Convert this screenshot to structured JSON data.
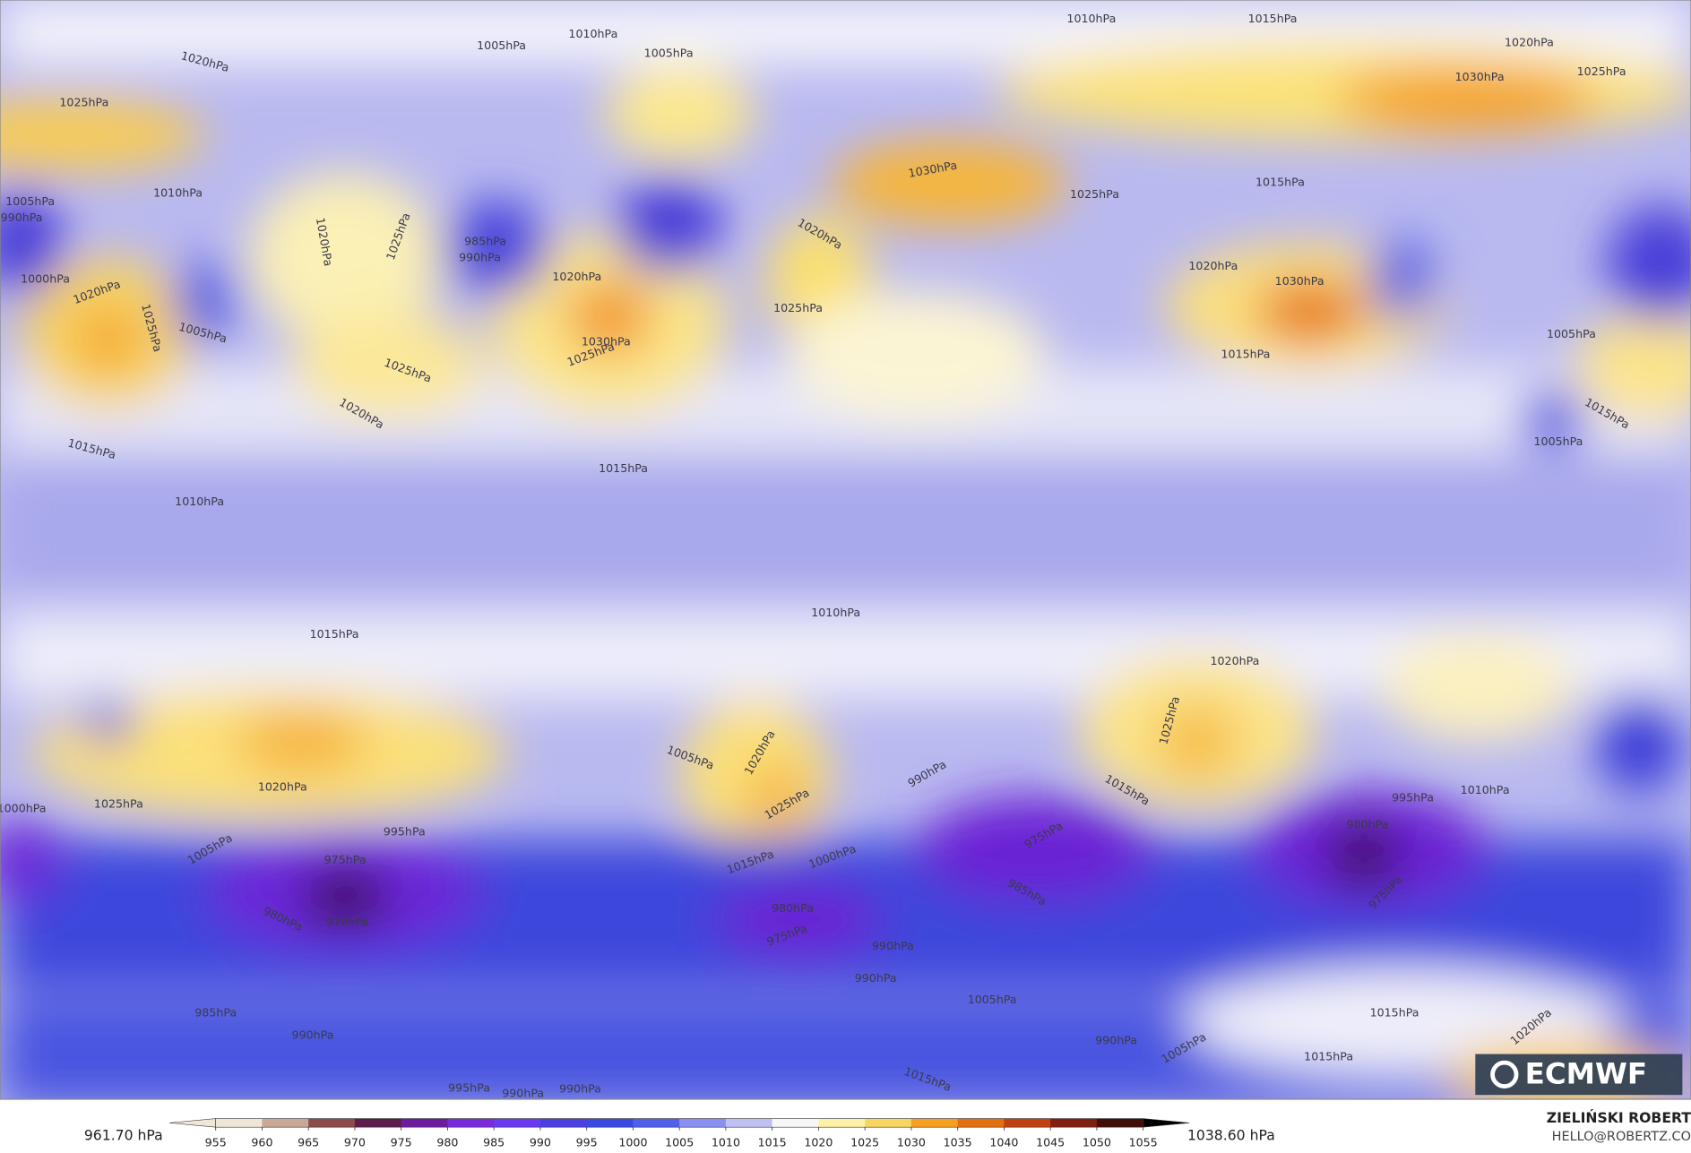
{
  "colorbar": {
    "ticks": [
      955,
      960,
      965,
      970,
      975,
      980,
      985,
      990,
      995,
      1000,
      1005,
      1010,
      1015,
      1020,
      1025,
      1030,
      1035,
      1040,
      1045,
      1050,
      1055
    ],
    "lim": [
      950,
      1060
    ],
    "min_label": "961.70 hPa",
    "max_label": "1038.60 hPa"
  },
  "logo": "ECMWF",
  "author": "ZIELIŃSKI ROBERT",
  "email": "HELLO@ROBERTZ.CO",
  "contour_labels": [
    "1010hPa",
    "1015hPa",
    "1020hPa",
    "1025hPa",
    "1030hPa",
    "1020hPa",
    "1025hPa",
    "1005hPa",
    "1010hPa",
    "1005hPa",
    "1010hPa",
    "1005hPa",
    "990hPa",
    "1000hPa",
    "1020hPa",
    "1025hPa",
    "1005hPa",
    "1020hPa",
    "1025hPa",
    "985hPa",
    "990hPa",
    "1030hPa",
    "1025hPa",
    "1020hPa",
    "1025hPa",
    "1020hPa",
    "1015hPa",
    "1015hPa",
    "1010hPa",
    "1030hPa",
    "1025hPa",
    "1015hPa",
    "1020hPa",
    "1025hPa",
    "1020hPa",
    "1030hPa",
    "1015hPa",
    "1005hPa",
    "1005hPa",
    "1015hPa",
    "1010hPa",
    "1015hPa",
    "1020hPa",
    "1025hPa",
    "1020hPa",
    "1025hPa",
    "1000hPa",
    "1005hPa",
    "1020hPa",
    "1025hPa",
    "990hPa",
    "1015hPa",
    "995hPa",
    "1010hPa",
    "975hPa",
    "970hPa",
    "980hPa",
    "995hPa",
    "1005hPa",
    "975hPa",
    "985hPa",
    "980hPa",
    "975hPa",
    "980hPa",
    "975hPa",
    "1000hPa",
    "1015hPa",
    "990hPa",
    "990hPa",
    "985hPa",
    "990hPa",
    "990hPa",
    "1005hPa",
    "1015hPa",
    "1020hPa",
    "1015hPa",
    "995hPa",
    "990hPa",
    "990hPa",
    "1015hPa",
    "1005hPa"
  ]
}
